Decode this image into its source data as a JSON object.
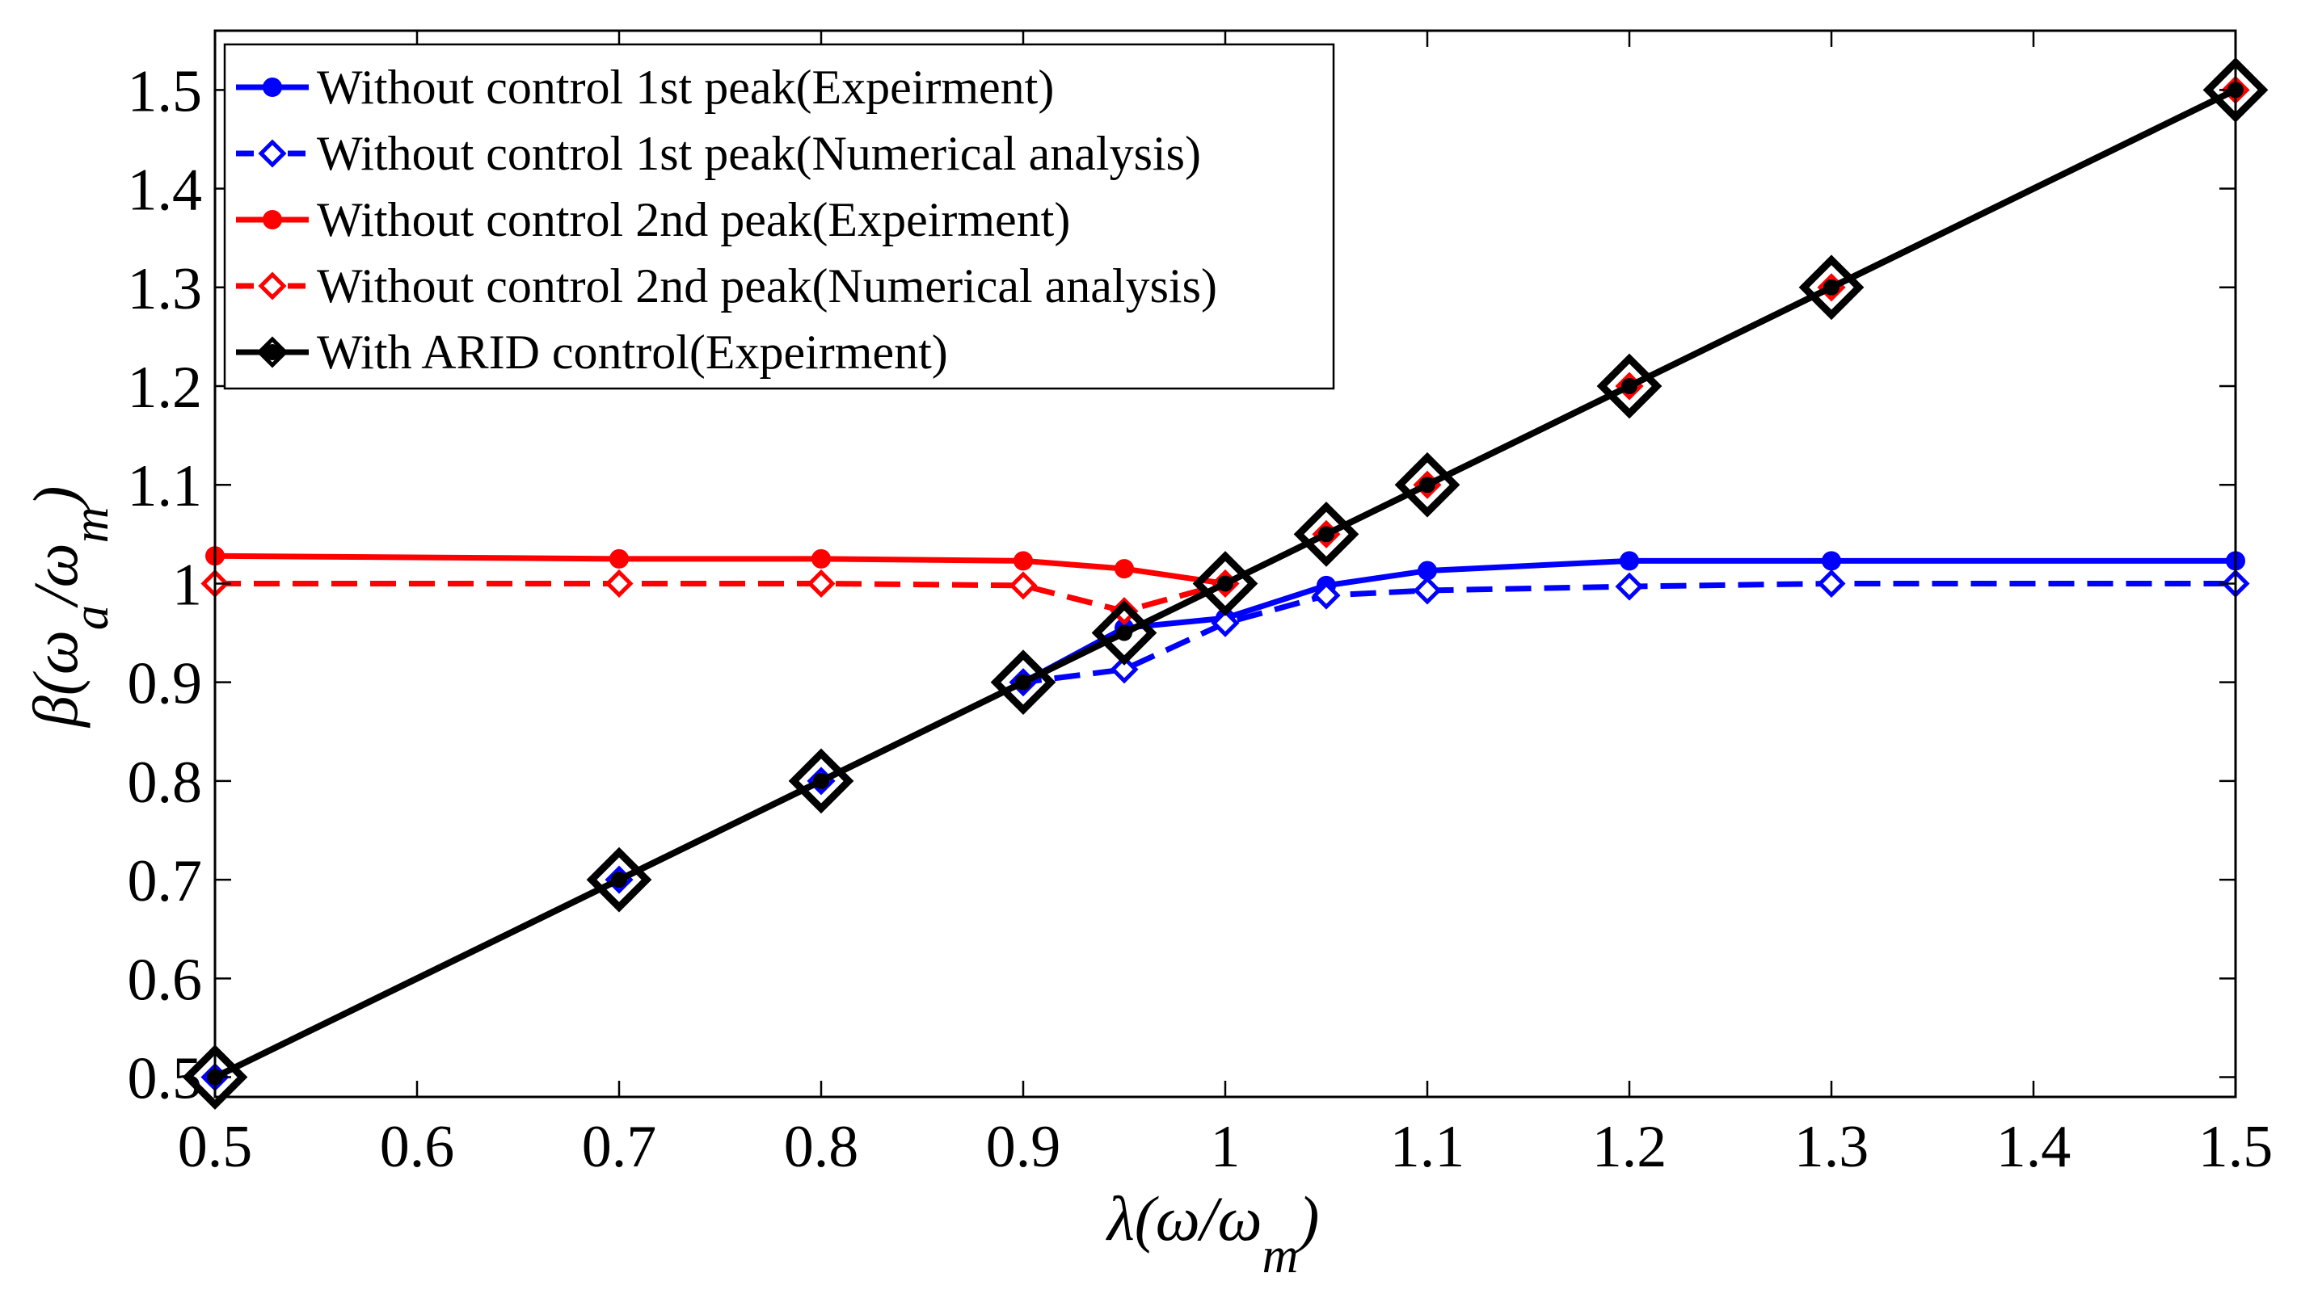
{
  "chart_data": {
    "type": "line",
    "title": "",
    "xlabel": {
      "base": "λ(ω/ω",
      "sub": "m",
      "close": ")"
    },
    "ylabel": {
      "base": "β(ω",
      "sub1": "a",
      "mid": "/ω",
      "sub2": "m",
      "close": ")"
    },
    "xlim": [
      0.5,
      1.5
    ],
    "ylim": [
      0.48,
      1.56
    ],
    "xticks": [
      0.5,
      0.6,
      0.7,
      0.8,
      0.9,
      1.0,
      1.1,
      1.2,
      1.3,
      1.4,
      1.5
    ],
    "xtick_labels": [
      "0.5",
      "0.6",
      "0.7",
      "0.8",
      "0.9",
      "1",
      "1.1",
      "1.2",
      "1.3",
      "1.4",
      "1.5"
    ],
    "yticks": [
      0.5,
      0.6,
      0.7,
      0.8,
      0.9,
      1.0,
      1.1,
      1.2,
      1.3,
      1.4,
      1.5
    ],
    "ytick_labels": [
      "0.5",
      "0.6",
      "0.7",
      "0.8",
      "0.9",
      "1",
      "1.1",
      "1.2",
      "1.3",
      "1.4",
      "1.5"
    ],
    "grid": false,
    "legend_position": "top-left",
    "series": [
      {
        "name": "Without control 1st peak(Expeirment)",
        "color": "#0000ff",
        "dash": "solid",
        "marker": "circle",
        "x": [
          0.5,
          0.7,
          0.8,
          0.9,
          0.95,
          1.0,
          1.05,
          1.1,
          1.2,
          1.3,
          1.5
        ],
        "y": [
          0.5,
          0.7,
          0.8,
          0.9,
          0.955,
          0.965,
          0.998,
          1.013,
          1.023,
          1.023,
          1.023
        ]
      },
      {
        "name": "Without control 1st peak(Numerical analysis)",
        "color": "#0000ff",
        "dash": "dashed",
        "marker": "diamond",
        "x": [
          0.5,
          0.7,
          0.8,
          0.9,
          0.95,
          1.0,
          1.05,
          1.1,
          1.2,
          1.3,
          1.5
        ],
        "y": [
          0.5,
          0.7,
          0.8,
          0.9,
          0.913,
          0.96,
          0.988,
          0.993,
          0.997,
          1.0,
          1.0
        ]
      },
      {
        "name": "Without control 2nd peak(Expeirment)",
        "color": "#ff0000",
        "dash": "solid",
        "marker": "circle",
        "x": [
          0.5,
          0.7,
          0.8,
          0.9,
          0.95,
          1.0,
          1.05,
          1.1,
          1.2,
          1.3,
          1.5
        ],
        "y": [
          1.028,
          1.025,
          1.025,
          1.023,
          1.015,
          1.0,
          1.05,
          1.1,
          1.2,
          1.3,
          1.5
        ]
      },
      {
        "name": "Without control 2nd peak(Numerical analysis)",
        "color": "#ff0000",
        "dash": "dashed",
        "marker": "diamond",
        "x": [
          0.5,
          0.7,
          0.8,
          0.9,
          0.95,
          1.0,
          1.05,
          1.1,
          1.2,
          1.3,
          1.5
        ],
        "y": [
          1.0,
          1.0,
          1.0,
          0.998,
          0.972,
          1.0,
          1.05,
          1.1,
          1.2,
          1.3,
          1.5
        ]
      },
      {
        "name": "With ARID control(Expeirment)",
        "color": "#000000",
        "dash": "solid",
        "marker": "circle-diamond",
        "x": [
          0.5,
          0.7,
          0.8,
          0.9,
          0.95,
          1.0,
          1.05,
          1.1,
          1.2,
          1.3,
          1.5
        ],
        "y": [
          0.5,
          0.7,
          0.8,
          0.9,
          0.95,
          1.0,
          1.05,
          1.1,
          1.2,
          1.3,
          1.5
        ]
      }
    ]
  }
}
